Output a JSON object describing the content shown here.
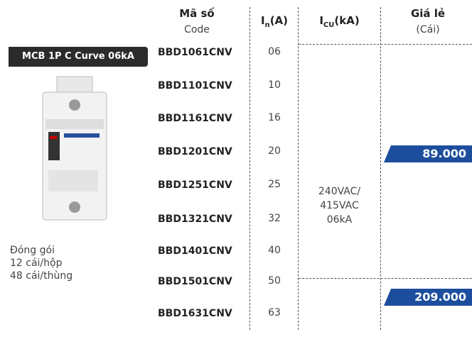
{
  "product": {
    "badge": "MCB 1P C Curve 06kA",
    "packaging": [
      "Đóng gói",
      "12 cái/hộp",
      "48 cái/thùng"
    ]
  },
  "table": {
    "headers": {
      "code": {
        "main": "Mã số",
        "sub": "Code"
      },
      "in": {
        "main": "I",
        "sub": "n",
        "unit": "(A)"
      },
      "icu": {
        "main": "I",
        "sub": "CU",
        "unit": "(kA)"
      },
      "price": {
        "main": "Giá lẻ",
        "sub": "(Cái)"
      }
    },
    "rows": [
      [
        "BBD1061CNV",
        "06"
      ],
      [
        "BBD1101CNV",
        "10"
      ],
      [
        "BBD1161CNV",
        "16"
      ],
      [
        "BBD1201CNV",
        "20"
      ],
      [
        "BBD1251CNV",
        "25"
      ],
      [
        "BBD1321CNV",
        "32"
      ],
      [
        "BBD1401CNV",
        "40"
      ],
      [
        "BBD1501CNV",
        "50"
      ],
      [
        "BBD1631CNV",
        "63"
      ]
    ],
    "icu_value": [
      "240VAC/",
      "415VAC",
      "06kA"
    ],
    "prices": [
      "89.000",
      "209.000"
    ]
  }
}
